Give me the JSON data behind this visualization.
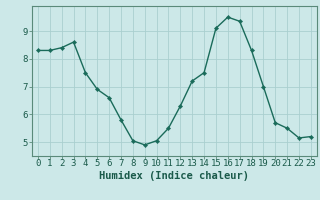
{
  "x": [
    0,
    1,
    2,
    3,
    4,
    5,
    6,
    7,
    8,
    9,
    10,
    11,
    12,
    13,
    14,
    15,
    16,
    17,
    18,
    19,
    20,
    21,
    22,
    23
  ],
  "y": [
    8.3,
    8.3,
    8.4,
    8.6,
    7.5,
    6.9,
    6.6,
    5.8,
    5.05,
    4.9,
    5.05,
    5.5,
    6.3,
    7.2,
    7.5,
    9.1,
    9.5,
    9.35,
    8.3,
    7.0,
    5.7,
    5.5,
    5.15,
    5.2
  ],
  "bg_color": "#cce8e8",
  "line_color": "#1a6b5a",
  "marker_color": "#1a6b5a",
  "grid_color": "#aacfcf",
  "axis_color": "#5a8a7a",
  "xlabel": "Humidex (Indice chaleur)",
  "xlim_min": -0.5,
  "xlim_max": 23.5,
  "ylim_min": 4.5,
  "ylim_max": 9.9,
  "yticks": [
    5,
    6,
    7,
    8,
    9
  ],
  "xticks": [
    0,
    1,
    2,
    3,
    4,
    5,
    6,
    7,
    8,
    9,
    10,
    11,
    12,
    13,
    14,
    15,
    16,
    17,
    18,
    19,
    20,
    21,
    22,
    23
  ],
  "font_color": "#1a5a4a",
  "xlabel_fontsize": 7.5,
  "tick_fontsize": 6.5,
  "linewidth": 1.0,
  "markersize": 2.2
}
